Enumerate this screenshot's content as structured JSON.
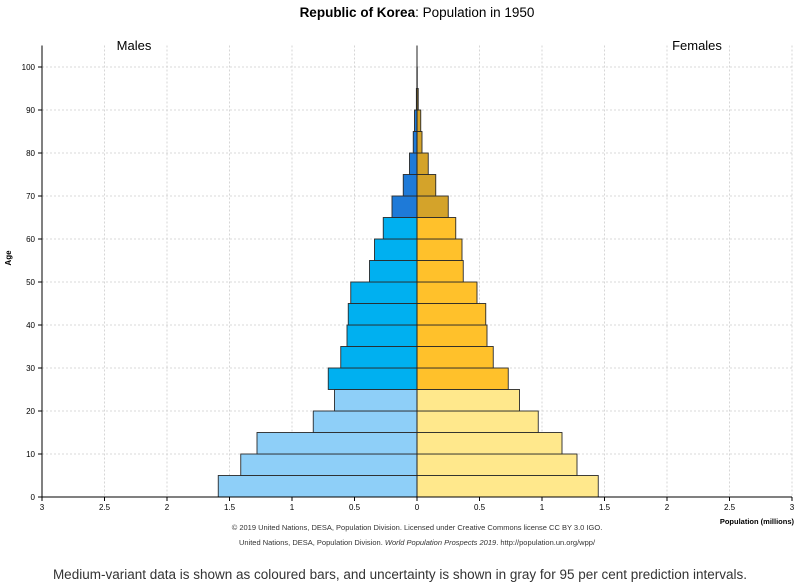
{
  "chart_data": {
    "type": "bar",
    "subtype": "population-pyramid",
    "title_bold": "Republic of Korea",
    "title_rest": ": Population in 1950",
    "ylabel": "Age",
    "xlabel": "Population (millions)",
    "xlim": [
      -3,
      3
    ],
    "ylim": [
      0,
      105
    ],
    "x_ticks": [
      -3,
      -2.5,
      -2,
      -1.5,
      -1,
      -0.5,
      0,
      0.5,
      1,
      1.5,
      2,
      2.5,
      3
    ],
    "x_tick_labels": [
      "3",
      "2.5",
      "2",
      "1.5",
      "1",
      "0.5",
      "0",
      "0.5",
      "1",
      "1.5",
      "2",
      "2.5",
      "3"
    ],
    "y_ticks": [
      0,
      10,
      20,
      30,
      40,
      50,
      60,
      70,
      80,
      90,
      100
    ],
    "y_tick_labels": [
      "0",
      "10",
      "20",
      "30",
      "40",
      "50",
      "60",
      "70",
      "80",
      "90",
      "100"
    ],
    "grid": true,
    "panel_labels": {
      "left": "Males",
      "right": "Females"
    },
    "age_groups": [
      "0-4",
      "5-9",
      "10-14",
      "15-19",
      "20-24",
      "25-29",
      "30-34",
      "35-39",
      "40-44",
      "45-49",
      "50-54",
      "55-59",
      "60-64",
      "65-69",
      "70-74",
      "75-79",
      "80-84",
      "85-89",
      "90-94",
      "95-99",
      "100+"
    ],
    "age_starts": [
      0,
      5,
      10,
      15,
      20,
      25,
      30,
      35,
      40,
      45,
      50,
      55,
      60,
      65,
      70,
      75,
      80,
      85,
      90,
      95,
      100
    ],
    "series": [
      {
        "name": "Males",
        "values": [
          1.59,
          1.41,
          1.28,
          0.83,
          0.66,
          0.71,
          0.61,
          0.56,
          0.55,
          0.53,
          0.38,
          0.34,
          0.27,
          0.2,
          0.11,
          0.06,
          0.03,
          0.02,
          0.005,
          0.001,
          0.0
        ]
      },
      {
        "name": "Females",
        "values": [
          1.45,
          1.28,
          1.16,
          0.97,
          0.82,
          0.73,
          0.61,
          0.56,
          0.55,
          0.48,
          0.37,
          0.36,
          0.31,
          0.25,
          0.15,
          0.09,
          0.04,
          0.03,
          0.01,
          0.002,
          0.0
        ]
      }
    ],
    "colors": {
      "male_young": "#8ecff8",
      "male_working": "#00b0f0",
      "male_old": "#1e7ad8",
      "female_young": "#ffe88c",
      "female_working": "#ffc12b",
      "female_old": "#d4a32a",
      "bar_edge": "#2a2a2a",
      "grid": "#cccccc"
    },
    "credit_line1": "© 2019 United Nations, DESA, Population Division. Licensed under Creative Commons license CC BY 3.0 IGO.",
    "credit_line2_a": "United Nations, DESA, Population Division.",
    "credit_line2_b": "World Population Prospects 2019",
    "credit_line2_c": ". http://population.un.org/wpp/"
  },
  "caption": "Medium-variant data is shown as coloured bars, and uncertainty is shown in gray for 95 per cent prediction intervals."
}
